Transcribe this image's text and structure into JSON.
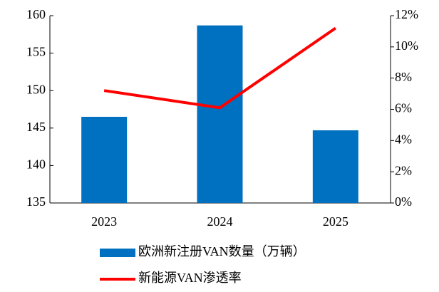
{
  "chart_data": {
    "type": "bar",
    "categories": [
      "2023",
      "2024",
      "2025"
    ],
    "series": [
      {
        "name": "欧洲新注册VAN数量（万辆）",
        "type": "bar",
        "color": "#0070c0",
        "values": [
          146.5,
          158.7,
          144.7
        ]
      },
      {
        "name": "新能源VAN渗透率",
        "type": "line",
        "axis": "y2",
        "color": "#ff0000",
        "values": [
          7.2,
          6.1,
          11.2
        ]
      }
    ],
    "ylim": [
      135,
      160
    ],
    "yticks": [
      135,
      140,
      145,
      150,
      155,
      160
    ],
    "y2lim": [
      0,
      12
    ],
    "y2ticks": [
      {
        "value": 0,
        "label": "0%"
      },
      {
        "value": 2,
        "label": "2%"
      },
      {
        "value": 4,
        "label": "4%"
      },
      {
        "value": 6,
        "label": "6%"
      },
      {
        "value": 8,
        "label": "8%"
      },
      {
        "value": 10,
        "label": "10%"
      },
      {
        "value": 12,
        "label": "12%"
      }
    ],
    "grid": false,
    "legend": "bottom"
  }
}
